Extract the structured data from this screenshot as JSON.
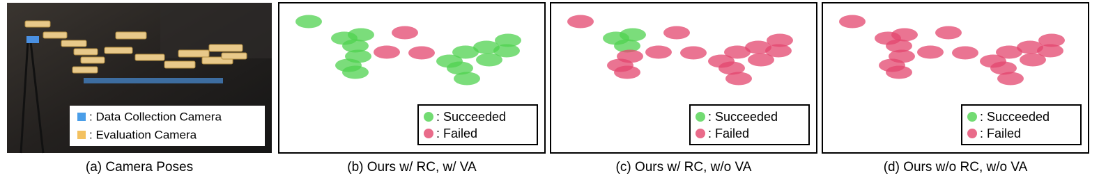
{
  "panels": [
    {
      "caption": "(a) Camera Poses",
      "legend": [
        ": Data Collection Camera",
        ": Evaluation Camera"
      ]
    },
    {
      "caption": "(b) Ours w/ RC, w/ VA",
      "legend": [
        ": Succeeded",
        ": Failed"
      ]
    },
    {
      "caption": "(c) Ours w/ RC, w/o VA",
      "legend": [
        ": Succeeded",
        ": Failed"
      ]
    },
    {
      "caption": "(d) Ours w/o RC, w/o VA",
      "legend": [
        ": Succeeded",
        ": Failed"
      ]
    }
  ]
}
